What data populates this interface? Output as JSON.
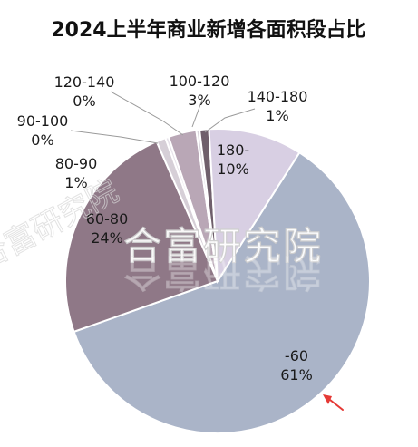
{
  "chart_data": {
    "type": "pie",
    "title": "2024上半年商业新增各面积段占比",
    "slices": [
      {
        "label": "-60",
        "value": 61,
        "value_text": "61%",
        "color": "#aab4c8"
      },
      {
        "label": "60-80",
        "value": 24,
        "value_text": "24%",
        "color": "#8f7887"
      },
      {
        "label": "80-90",
        "value": 1,
        "value_text": "1%",
        "color": "#d6cfd7"
      },
      {
        "label": "90-100",
        "value": 0,
        "value_text": "0%",
        "color": "#e7e3ea"
      },
      {
        "label": "100-120",
        "value": 3,
        "value_text": "3%",
        "color": "#b9a7b6"
      },
      {
        "label": "120-140",
        "value": 0,
        "value_text": "0%",
        "color": "#d9d5dc"
      },
      {
        "label": "140-180",
        "value": 1,
        "value_text": "1%",
        "color": "#6f5f6b"
      },
      {
        "label": "180-",
        "value": 10,
        "value_text": "10%",
        "color": "#d8cfe3"
      }
    ],
    "legend": "none"
  },
  "watermark": {
    "text": "合富研究院"
  },
  "annotation": {
    "arrow_color": "#e53935"
  }
}
